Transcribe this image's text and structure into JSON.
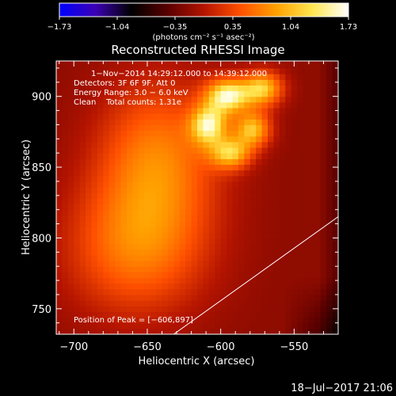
{
  "chart_data": {
    "type": "heatmap",
    "title": "Reconstructed RHESSI Image",
    "xlabel": "Heliocentric X (arcsec)",
    "ylabel": "Heliocentric Y (arcsec)",
    "xlim": [
      -712,
      -520
    ],
    "ylim": [
      732,
      925
    ],
    "x_ticks": [
      -700,
      -650,
      -600,
      -550
    ],
    "x_tick_labels": [
      "−700",
      "−650",
      "−600",
      "−550"
    ],
    "y_ticks": [
      750,
      800,
      850,
      900
    ],
    "y_tick_labels": [
      "750",
      "800",
      "850",
      "900"
    ],
    "colorbar": {
      "range": [
        -1.73,
        1.73
      ],
      "tick_labels": [
        "−1.73",
        "−1.04",
        "−0.35",
        "0.35",
        "1.04",
        "1.73"
      ],
      "unit_text": "(photons cm⁻² s⁻¹ asec⁻²)",
      "colormap": [
        "#0000ff",
        "#3c00b4",
        "#000000",
        "#5a0000",
        "#b41400",
        "#ff5000",
        "#ffa000",
        "#ffe650",
        "#ffffff"
      ]
    },
    "annotations": [
      "1−Nov−2014 14:29:12.000 to 14:39:12.000",
      "Detectors: 3F 6F 9F, Att 0",
      "Energy Range: 3.0 − 6.0 keV",
      "Clean    Total counts: 1.31e",
      "Position of Peak = [−606,897]"
    ],
    "peak": [
      -606,
      897
    ],
    "sources": [
      {
        "x": -597,
        "y": 899,
        "amp": 1.0,
        "sx": 11,
        "sy": 9
      },
      {
        "x": -573,
        "y": 904,
        "amp": 0.85,
        "sx": 10,
        "sy": 9
      },
      {
        "x": -610,
        "y": 878,
        "amp": 0.85,
        "sx": 9,
        "sy": 10
      },
      {
        "x": -580,
        "y": 875,
        "amp": 0.8,
        "sx": 9,
        "sy": 9
      },
      {
        "x": -595,
        "y": 858,
        "amp": 0.75,
        "sx": 10,
        "sy": 8
      },
      {
        "x": -645,
        "y": 855,
        "amp": 0.6,
        "sx": 30,
        "sy": 40
      },
      {
        "x": -660,
        "y": 790,
        "amp": 0.55,
        "sx": 35,
        "sy": 35
      }
    ],
    "limb_line": {
      "x": [
        -632,
        -520
      ],
      "y": [
        732,
        815
      ]
    }
  },
  "footer": {
    "timestamp": "18−Jul−2017 21:06"
  }
}
